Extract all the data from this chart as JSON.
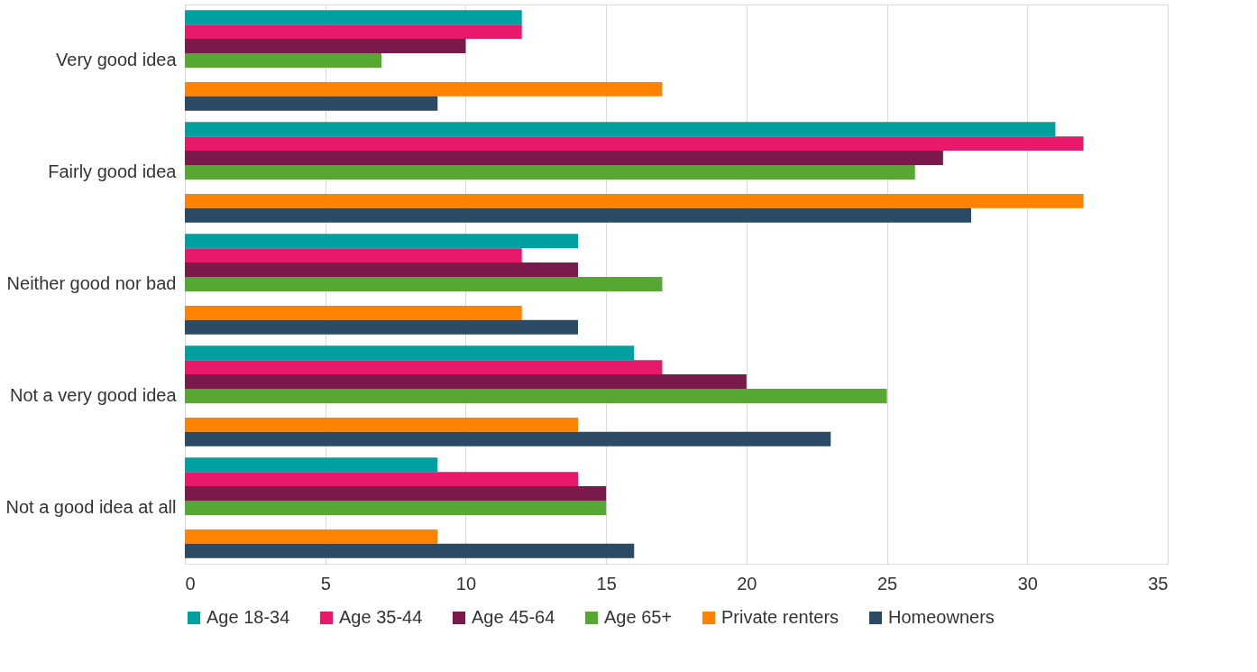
{
  "chart_data": {
    "type": "bar",
    "orientation": "horizontal",
    "categories": [
      "Very good idea",
      "Fairly good idea",
      "Neither good nor bad",
      "Not a very good idea",
      "Not a good idea at all"
    ],
    "series": [
      {
        "name": "Age 18-34",
        "color": "#00a0a0",
        "values": [
          12,
          31,
          14,
          16,
          9
        ]
      },
      {
        "name": "Age 35-44",
        "color": "#e8196a",
        "values": [
          12,
          32,
          12,
          17,
          14
        ]
      },
      {
        "name": "Age 45-64",
        "color": "#7a1a4a",
        "values": [
          10,
          27,
          14,
          20,
          15
        ]
      },
      {
        "name": "Age 65+",
        "color": "#56a832",
        "values": [
          7,
          26,
          17,
          25,
          15
        ]
      },
      {
        "name": "Private renters",
        "color": "#ff8200",
        "values": [
          17,
          32,
          12,
          14,
          9
        ]
      },
      {
        "name": "Homeowners",
        "color": "#2a4a66",
        "values": [
          9,
          28,
          14,
          23,
          16
        ]
      }
    ],
    "xlim": [
      0,
      35
    ],
    "xticks": [
      0,
      5,
      10,
      15,
      20,
      25,
      30,
      35
    ],
    "grid": "x",
    "legend": "bottom"
  }
}
